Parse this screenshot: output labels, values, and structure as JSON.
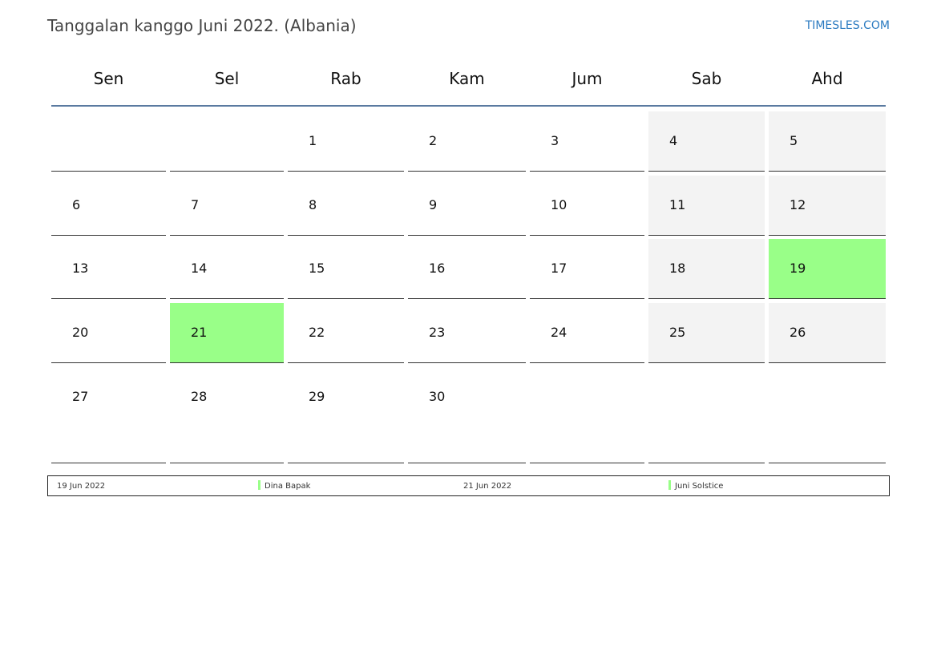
{
  "title": "Tanggalan kanggo Juni 2022. (Albania)",
  "brand": "TIMESLES.COM",
  "weekdays": [
    "Sen",
    "Sel",
    "Rab",
    "Kam",
    "Jum",
    "Sab",
    "Ahd"
  ],
  "weeks": [
    [
      null,
      null,
      "1",
      "2",
      "3",
      "4",
      "5"
    ],
    [
      "6",
      "7",
      "8",
      "9",
      "10",
      "11",
      "12"
    ],
    [
      "13",
      "14",
      "15",
      "16",
      "17",
      "18",
      "19"
    ],
    [
      "20",
      "21",
      "22",
      "23",
      "24",
      "25",
      "26"
    ],
    [
      "27",
      "28",
      "29",
      "30",
      null,
      null,
      null
    ]
  ],
  "holidays": [
    "19",
    "21"
  ],
  "colors": {
    "holiday": "#99ff88",
    "weekend": "#f3f3f3",
    "header_line": "#5a7aa0"
  },
  "legend": [
    {
      "date": "19 Jun 2022",
      "name": "Dina Bapak"
    },
    {
      "date": "21 Jun 2022",
      "name": "Juni Solstice"
    }
  ]
}
